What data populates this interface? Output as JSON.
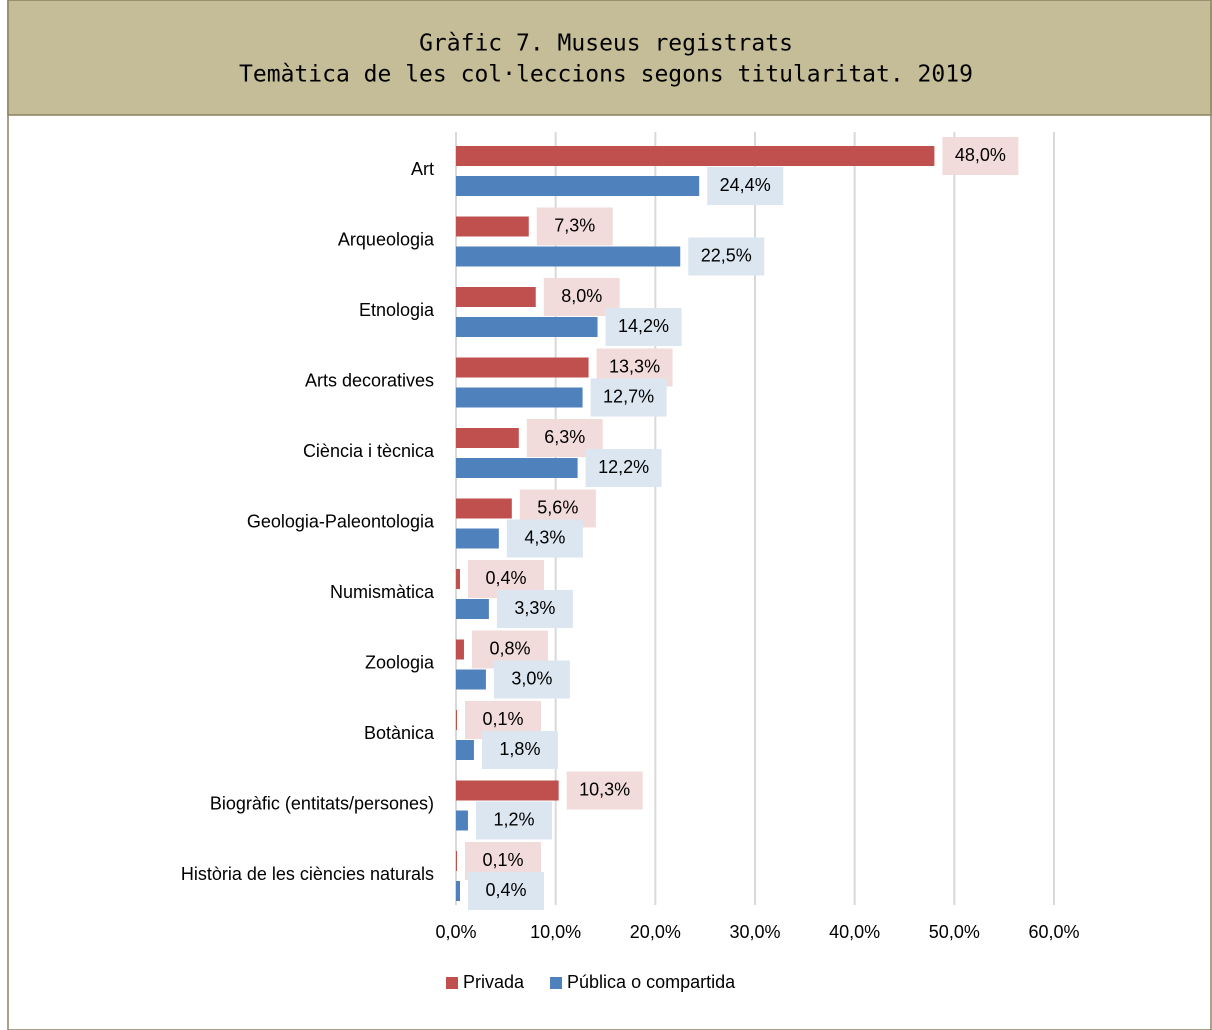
{
  "chart_data": {
    "type": "hbar",
    "title": "Gràfic 7. Museus registrats",
    "subtitle": "Temàtica de les col·leccions segons titularitat. 2019",
    "categories": [
      "Art",
      "Arqueologia",
      "Etnologia",
      "Arts decoratives",
      "Ciència i tècnica",
      "Geologia-Paleontologia",
      "Numismàtica",
      "Zoologia",
      "Botànica",
      "Biogràfic (entitats/persones)",
      "Història de les ciències naturals"
    ],
    "series": [
      {
        "name": "Privada",
        "color": "#c0504d",
        "label_bg": "#f2dcdb",
        "values": [
          48.0,
          7.3,
          8.0,
          13.3,
          6.3,
          5.6,
          0.4,
          0.8,
          0.1,
          10.3,
          0.1
        ],
        "value_labels": [
          "48,0%",
          "7,3%",
          "8,0%",
          "13,3%",
          "6,3%",
          "5,6%",
          "0,4%",
          "0,8%",
          "0,1%",
          "10,3%",
          "0,1%"
        ]
      },
      {
        "name": "Pública o compartida",
        "color": "#4f81bd",
        "label_bg": "#dce6f1",
        "values": [
          24.4,
          22.5,
          14.2,
          12.7,
          12.2,
          4.3,
          3.3,
          3.0,
          1.8,
          1.2,
          0.4
        ],
        "value_labels": [
          "24,4%",
          "22,5%",
          "14,2%",
          "12,7%",
          "12,2%",
          "4,3%",
          "3,3%",
          "3,0%",
          "1,8%",
          "1,2%",
          "0,4%"
        ]
      }
    ],
    "xlim": [
      0,
      60
    ],
    "xticks": [
      {
        "value": 0,
        "label": "0,0%"
      },
      {
        "value": 10,
        "label": "10,0%"
      },
      {
        "value": 20,
        "label": "20,0%"
      },
      {
        "value": 30,
        "label": "30,0%"
      },
      {
        "value": 40,
        "label": "40,0%"
      },
      {
        "value": 50,
        "label": "50,0%"
      },
      {
        "value": 60,
        "label": "60,0%"
      }
    ],
    "grid": true,
    "legend": "bottom"
  }
}
